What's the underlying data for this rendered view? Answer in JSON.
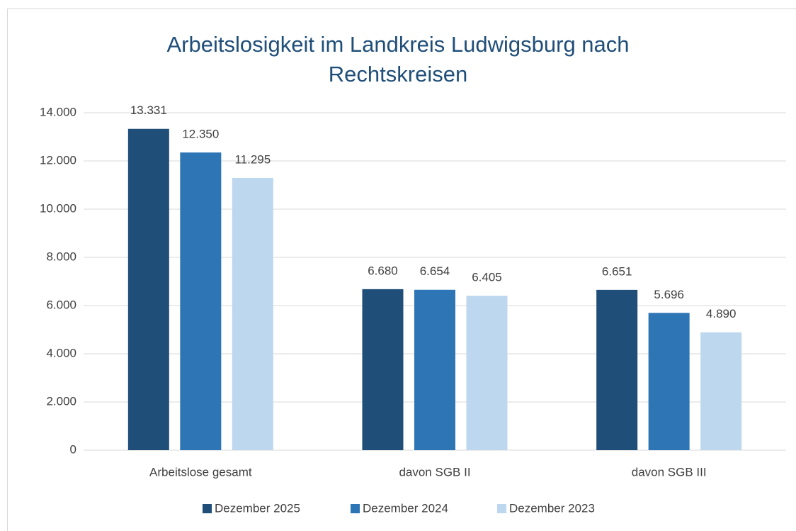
{
  "chart_data": {
    "type": "bar",
    "title": "Arbeitslosigkeit im Landkreis Ludwigsburg nach Rechtskreisen",
    "categories": [
      "Arbeitslose gesamt",
      "davon SGB II",
      "davon SGB III"
    ],
    "series": [
      {
        "name": "Dezember 2025",
        "color": "#1f4e79",
        "values": [
          13331,
          6680,
          6651
        ],
        "value_labels": [
          "13.331",
          "6.680",
          "6.651"
        ]
      },
      {
        "name": "Dezember 2024",
        "color": "#2e75b6",
        "values": [
          12350,
          6654,
          5696
        ],
        "value_labels": [
          "12.350",
          "6.654",
          "5.696"
        ]
      },
      {
        "name": "Dezember 2023",
        "color": "#bdd7ee",
        "values": [
          11295,
          6405,
          4890
        ],
        "value_labels": [
          "11.295",
          "6.405",
          "4.890"
        ]
      }
    ],
    "ylim": [
      0,
      14000
    ],
    "yticks": [
      0,
      {
        "value": 2000,
        "label": "2.000"
      },
      {
        "value": 4000,
        "label": "4.000"
      },
      {
        "value": 6000,
        "label": "6.000"
      },
      {
        "value": 8000,
        "label": "8.000"
      },
      {
        "value": 10000,
        "label": "10.000"
      },
      {
        "value": 12000,
        "label": "12.000"
      },
      {
        "value": 14000,
        "label": "14.000"
      }
    ],
    "grid": true,
    "legend": "bottom"
  }
}
